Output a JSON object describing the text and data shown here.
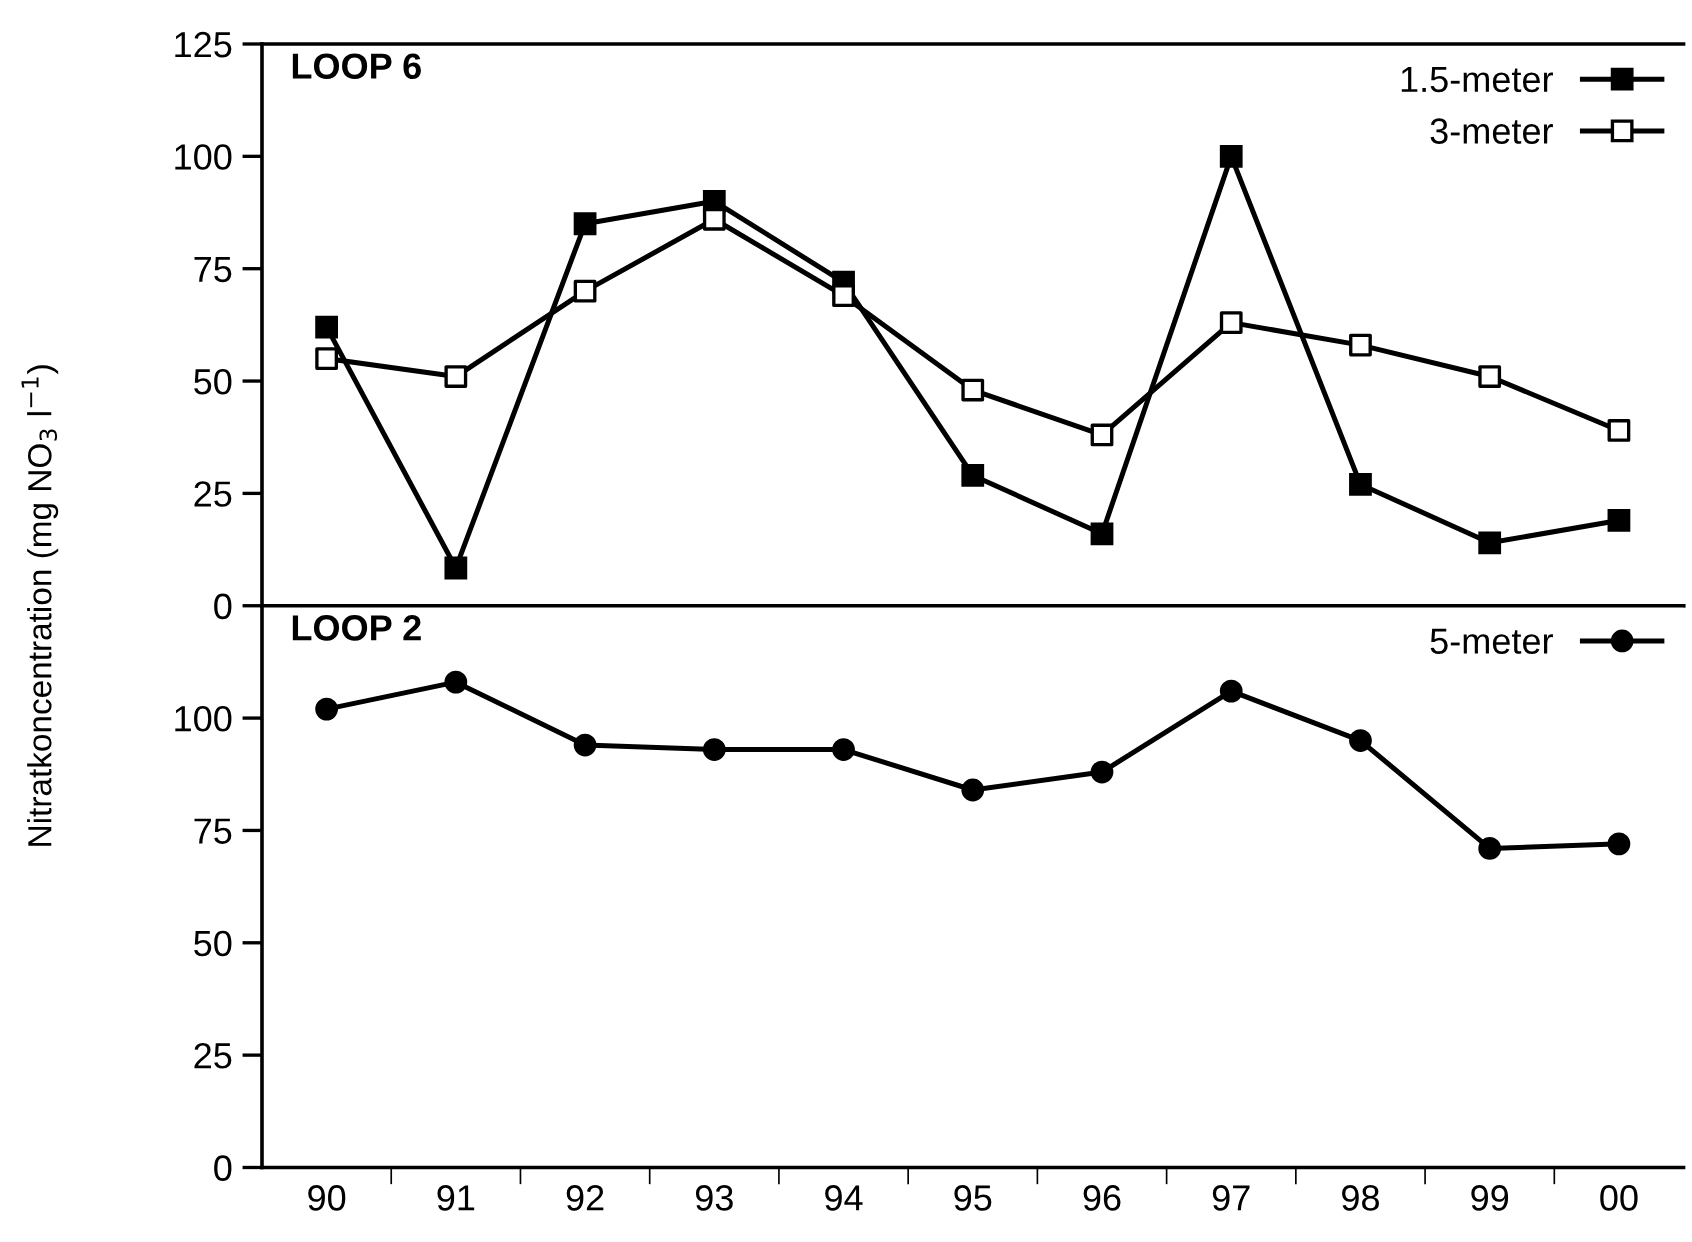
{
  "chart_data": [
    {
      "type": "line",
      "annotations": [
        "LOOP 6"
      ],
      "ylabel": "Nitratkoncentration (mg NO$_{3}$ l$^{−1}$)",
      "categories": [
        "90",
        "91",
        "92",
        "93",
        "94",
        "95",
        "96",
        "97",
        "98",
        "99",
        "00"
      ],
      "ylim": [
        0,
        125
      ],
      "yticks": [
        0,
        25,
        50,
        75,
        100,
        125
      ],
      "tick_labels": "y",
      "legend": "top right",
      "grid": false,
      "line_style": "solid",
      "series": [
        {
          "name": "1.5-meter",
          "color": "#000000",
          "marker": "square",
          "values": [
            62,
            8.4,
            85,
            90,
            72,
            29,
            16,
            100,
            27,
            14,
            19
          ]
        },
        {
          "name": "3-meter",
          "color": "#000000",
          "marker": "square",
          "colors": [
            "#ffffff",
            "#ffffff",
            "#ffffff",
            "#ffffff",
            "#ffffff",
            "#ffffff",
            "#ffffff",
            "#ffffff",
            "#ffffff",
            "#ffffff",
            "#ffffff"
          ],
          "values": [
            55,
            51,
            70,
            86,
            69,
            48,
            38,
            63,
            58,
            51,
            39
          ]
        }
      ]
    },
    {
      "type": "line",
      "annotations": [
        "LOOP 2"
      ],
      "categories": [
        "90",
        "91",
        "92",
        "93",
        "94",
        "95",
        "96",
        "97",
        "98",
        "99",
        "00"
      ],
      "ylim": [
        0,
        125
      ],
      "yticks": [
        0,
        25,
        50,
        75,
        100
      ],
      "legend": "top right",
      "grid": false,
      "line_style": "solid",
      "series": [
        {
          "name": "5-meter",
          "color": "#000000",
          "marker": "circle",
          "values": [
            102,
            108,
            94,
            93,
            93,
            84,
            88,
            106,
            95,
            71,
            72
          ]
        }
      ]
    }
  ]
}
